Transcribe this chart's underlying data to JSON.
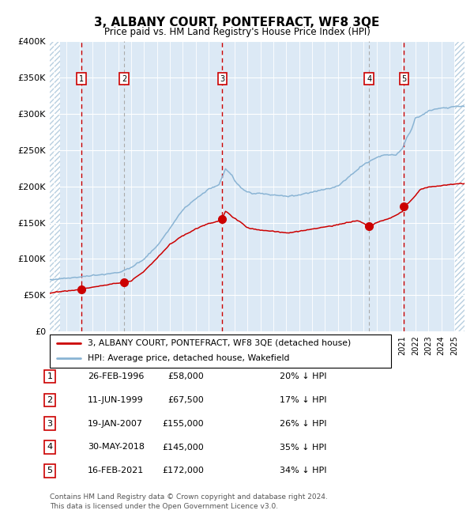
{
  "title": "3, ALBANY COURT, PONTEFRACT, WF8 3QE",
  "subtitle": "Price paid vs. HM Land Registry's House Price Index (HPI)",
  "ylim": [
    0,
    400000
  ],
  "yticks": [
    0,
    50000,
    100000,
    150000,
    200000,
    250000,
    300000,
    350000,
    400000
  ],
  "ytick_labels": [
    "£0",
    "£50K",
    "£100K",
    "£150K",
    "£200K",
    "£250K",
    "£300K",
    "£350K",
    "£400K"
  ],
  "xlim_start": 1993.7,
  "xlim_end": 2025.8,
  "bg_color": "#dce9f5",
  "grid_color": "#ffffff",
  "hatch_color": "#b8cfe0",
  "sale_dates": [
    1996.15,
    1999.44,
    2007.05,
    2018.41,
    2021.12
  ],
  "sale_prices": [
    58000,
    67500,
    155000,
    145000,
    172000
  ],
  "sale_labels": [
    "1",
    "2",
    "3",
    "4",
    "5"
  ],
  "vline_red_dates": [
    1996.15,
    2007.05,
    2021.12
  ],
  "vline_gray_dates": [
    1999.44,
    2018.41
  ],
  "legend_red_label": "3, ALBANY COURT, PONTEFRACT, WF8 3QE (detached house)",
  "legend_blue_label": "HPI: Average price, detached house, Wakefield",
  "table_rows": [
    [
      "1",
      "26-FEB-1996",
      "£58,000",
      "20% ↓ HPI"
    ],
    [
      "2",
      "11-JUN-1999",
      "£67,500",
      "17% ↓ HPI"
    ],
    [
      "3",
      "19-JAN-2007",
      "£155,000",
      "26% ↓ HPI"
    ],
    [
      "4",
      "30-MAY-2018",
      "£145,000",
      "35% ↓ HPI"
    ],
    [
      "5",
      "16-FEB-2021",
      "£172,000",
      "34% ↓ HPI"
    ]
  ],
  "footer": "Contains HM Land Registry data © Crown copyright and database right 2024.\nThis data is licensed under the Open Government Licence v3.0.",
  "red_color": "#cc0000",
  "blue_color": "#8ab4d4",
  "marker_color": "#cc0000"
}
